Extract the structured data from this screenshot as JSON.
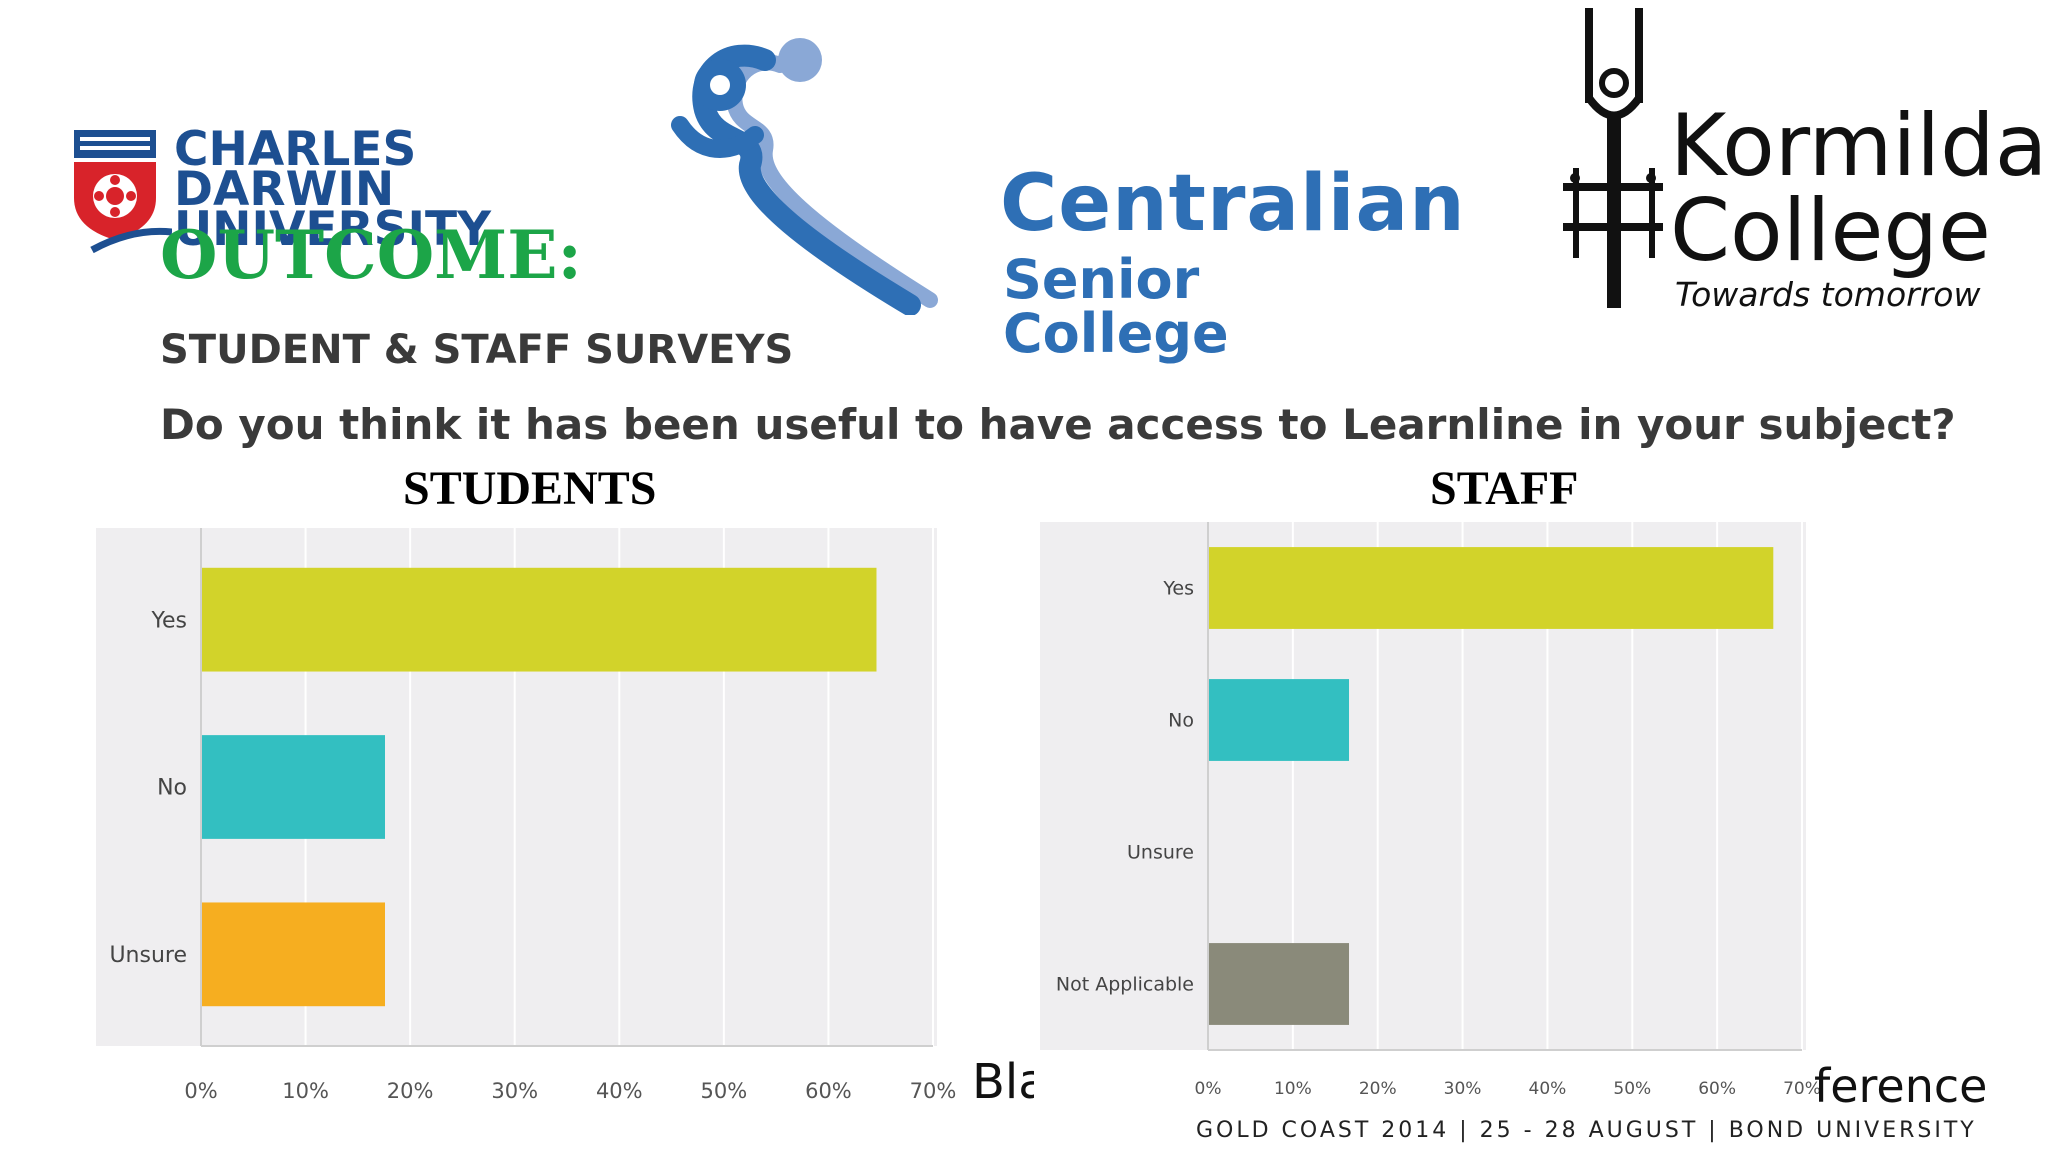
{
  "logos": {
    "cdu": {
      "lines": [
        "CHARLES",
        "DARWIN",
        "UNIVERSITY"
      ]
    },
    "csc": {
      "name": "Centralian",
      "sub": "Senior College"
    },
    "kormilda": {
      "name1": "Kormilda",
      "name2": "College",
      "tagline": "Towards tomorrow"
    }
  },
  "slide": {
    "outcome": "OUTCOME:",
    "subtitle": "STUDENT & STAFF SURVEYS",
    "question": "Do you think it has been useful to have access to Learnline in your subject?"
  },
  "colors": {
    "yes": "#d2d32a",
    "no": "#33bfc1",
    "unsure": "#f6ae20",
    "not_applicable": "#8a8a7a",
    "plot_bg": "#efeef0",
    "grid": "#ffffff",
    "cdu_blue": "#1d4f91",
    "cdu_red": "#d8232a",
    "csc_blue": "#2e6fb5",
    "csc_light": "#8aa8d6",
    "outcome_green": "#1ca548"
  },
  "chart_data": [
    {
      "type": "bar",
      "orientation": "horizontal",
      "title": "STUDENTS",
      "categories": [
        "Yes",
        "No",
        "Unsure"
      ],
      "values": [
        64.5,
        17.5,
        17.5
      ],
      "xlim": [
        0,
        70
      ],
      "xticks": [
        "0%",
        "10%",
        "20%",
        "30%",
        "40%",
        "50%",
        "60%",
        "70%"
      ],
      "grid": true
    },
    {
      "type": "bar",
      "orientation": "horizontal",
      "title": "STAFF",
      "categories": [
        "Yes",
        "No",
        "Unsure",
        "Not Applicable"
      ],
      "values": [
        66.5,
        16.5,
        0,
        16.5
      ],
      "xlim": [
        0,
        70
      ],
      "xticks": [
        "0%",
        "10%",
        "20%",
        "30%",
        "40%",
        "50%",
        "60%",
        "70%"
      ],
      "grid": true
    }
  ],
  "conference": {
    "left": "Bla",
    "right": "ference",
    "footer": "GOLD COAST 2014 | 25 - 28 AUGUST | BOND UNIVERSITY"
  }
}
